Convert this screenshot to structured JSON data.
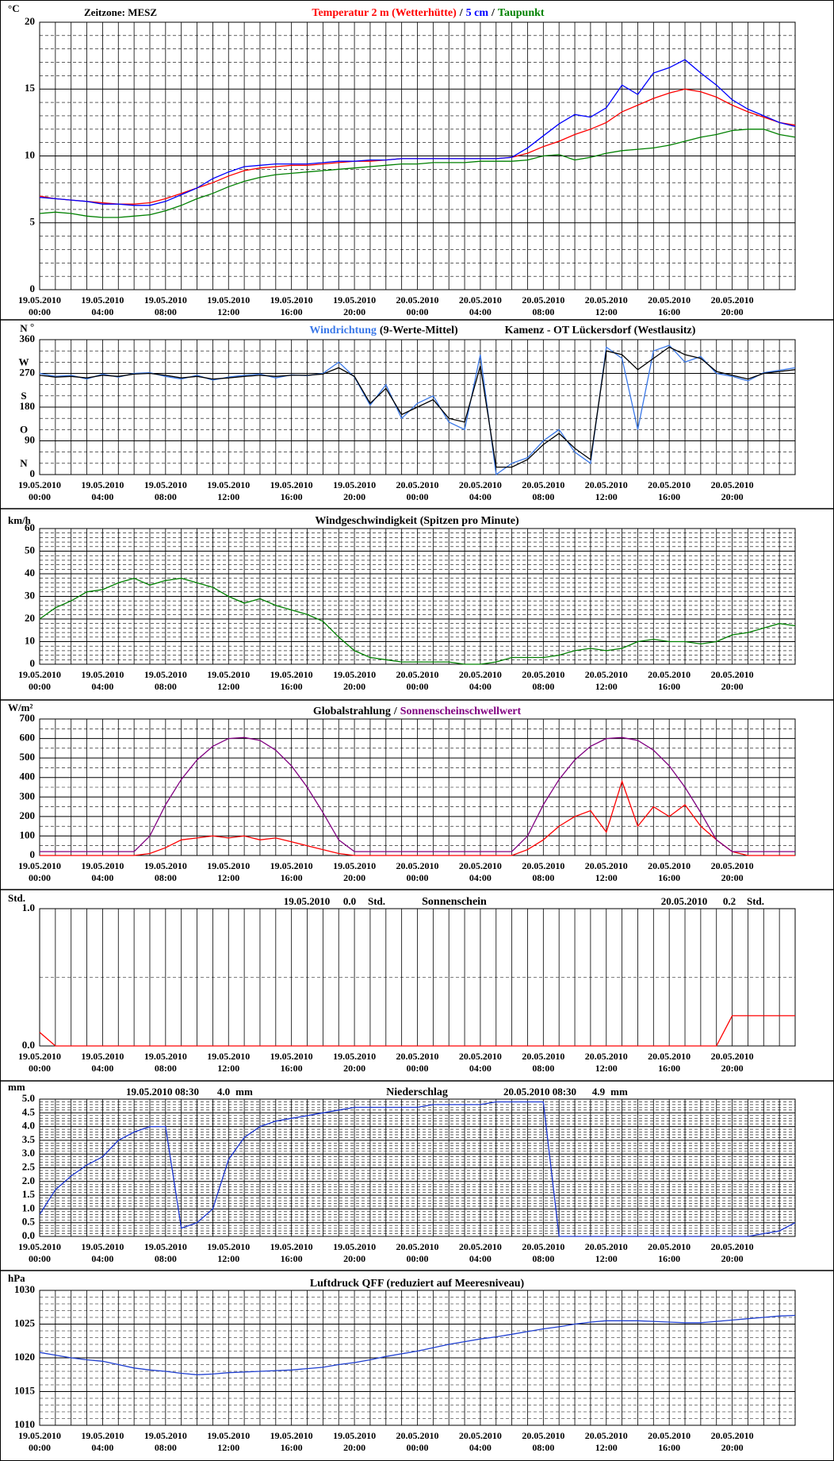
{
  "chart_data": [
    {
      "type": "line",
      "unit": "°C",
      "annotations": [
        "Zeitzone: MESZ"
      ],
      "legend_separator": "/",
      "categories": [
        "19.05.2010\n00:00",
        null,
        null,
        null,
        "19.05.2010\n04:00",
        null,
        null,
        null,
        "19.05.2010\n08:00",
        null,
        null,
        null,
        "19.05.2010\n12:00",
        null,
        null,
        null,
        "19.05.2010\n16:00",
        null,
        null,
        null,
        "19.05.2010\n20:00",
        null,
        null,
        null,
        "20.05.2010\n00:00",
        null,
        null,
        null,
        "20.05.2010\n04:00",
        null,
        null,
        null,
        "20.05.2010\n08:00",
        null,
        null,
        null,
        "20.05.2010\n12:00",
        null,
        null,
        null,
        "20.05.2010\n16:00",
        null,
        null,
        null,
        "20.05.2010\n20:00",
        null,
        null,
        null,
        null
      ],
      "ylim": [
        0,
        20
      ],
      "yticks": [
        0,
        5,
        10,
        15,
        20
      ],
      "minor_grid": 5,
      "x_grid": true,
      "series": [
        {
          "name": "Temperatur 2 m (Wetterhütte)",
          "color": "#ff0000",
          "values": [
            7.0,
            6.8,
            6.7,
            6.6,
            6.5,
            6.4,
            6.4,
            6.5,
            6.8,
            7.2,
            7.6,
            8.0,
            8.5,
            8.9,
            9.1,
            9.2,
            9.3,
            9.3,
            9.4,
            9.5,
            9.6,
            9.6,
            9.7,
            9.8,
            9.8,
            9.8,
            9.8,
            9.8,
            9.8,
            9.8,
            9.9,
            10.2,
            10.7,
            11.1,
            11.6,
            12.0,
            12.5,
            13.3,
            13.8,
            14.3,
            14.7,
            15.0,
            14.8,
            14.4,
            13.8,
            13.3,
            12.9,
            12.5,
            12.3
          ]
        },
        {
          "name": "5 cm",
          "color": "#0000ff",
          "values": [
            6.9,
            6.8,
            6.7,
            6.6,
            6.4,
            6.4,
            6.3,
            6.3,
            6.6,
            7.1,
            7.6,
            8.3,
            8.8,
            9.2,
            9.3,
            9.4,
            9.4,
            9.4,
            9.5,
            9.6,
            9.6,
            9.7,
            9.7,
            9.8,
            9.8,
            9.8,
            9.8,
            9.8,
            9.8,
            9.8,
            9.9,
            10.6,
            11.5,
            12.4,
            13.1,
            12.9,
            13.6,
            15.3,
            14.6,
            16.2,
            16.6,
            17.2,
            16.2,
            15.3,
            14.2,
            13.5,
            13.0,
            12.5,
            12.2
          ]
        },
        {
          "name": "Taupunkt",
          "color": "#008000",
          "values": [
            5.7,
            5.8,
            5.7,
            5.5,
            5.4,
            5.4,
            5.5,
            5.6,
            5.9,
            6.3,
            6.8,
            7.2,
            7.7,
            8.1,
            8.4,
            8.6,
            8.7,
            8.8,
            8.9,
            9.0,
            9.1,
            9.2,
            9.3,
            9.4,
            9.4,
            9.5,
            9.5,
            9.5,
            9.6,
            9.6,
            9.6,
            9.7,
            10.0,
            10.1,
            9.7,
            9.9,
            10.2,
            10.4,
            10.5,
            10.6,
            10.8,
            11.1,
            11.4,
            11.6,
            11.9,
            12.0,
            12.0,
            11.6,
            11.4
          ]
        }
      ]
    },
    {
      "type": "line",
      "unit": "°",
      "subtitle": "Kamenz - OT Lückersdorf (Westlausitz)",
      "categories": [
        "19.05.2010\n00:00",
        null,
        null,
        null,
        "19.05.2010\n04:00",
        null,
        null,
        null,
        "19.05.2010\n08:00",
        null,
        null,
        null,
        "19.05.2010\n12:00",
        null,
        null,
        null,
        "19.05.2010\n16:00",
        null,
        null,
        null,
        "19.05.2010\n20:00",
        null,
        null,
        null,
        "20.05.2010\n00:00",
        null,
        null,
        null,
        "20.05.2010\n04:00",
        null,
        null,
        null,
        "20.05.2010\n08:00",
        null,
        null,
        null,
        "20.05.2010\n12:00",
        null,
        null,
        null,
        "20.05.2010\n16:00",
        null,
        null,
        null,
        "20.05.2010\n20:00",
        null,
        null,
        null,
        null
      ],
      "ylim": [
        0,
        360
      ],
      "yticks": [
        0,
        90,
        180,
        270,
        360
      ],
      "minor_grid": 3,
      "x_grid": true,
      "y_compass": [
        {
          "value": 0,
          "label": "N"
        },
        {
          "value": 90,
          "label": "O"
        },
        {
          "value": 180,
          "label": "S"
        },
        {
          "value": 270,
          "label": "W"
        },
        {
          "value": 360,
          "label": "N"
        }
      ],
      "series": [
        {
          "name": "Windrichtung",
          "color": "#3a78e8",
          "values": [
            270,
            262,
            265,
            255,
            268,
            260,
            270,
            272,
            262,
            255,
            265,
            252,
            260,
            265,
            268,
            258,
            266,
            264,
            270,
            300,
            260,
            185,
            240,
            150,
            190,
            210,
            140,
            120,
            320,
            0,
            30,
            45,
            90,
            120,
            60,
            30,
            340,
            310,
            120,
            330,
            345,
            300,
            315,
            270,
            262,
            250,
            272,
            278,
            285
          ]
        },
        {
          "name": "(9-Werte-Mittel)",
          "color": "#000000",
          "values": [
            265,
            260,
            262,
            258,
            265,
            262,
            268,
            270,
            265,
            258,
            262,
            255,
            258,
            262,
            265,
            262,
            265,
            265,
            268,
            285,
            262,
            190,
            230,
            160,
            180,
            200,
            150,
            140,
            290,
            20,
            20,
            40,
            80,
            110,
            70,
            40,
            330,
            320,
            280,
            310,
            340,
            320,
            310,
            275,
            265,
            255,
            270,
            275,
            280
          ]
        }
      ]
    },
    {
      "type": "line",
      "unit": "km/h",
      "title": "Windgeschwindigkeit (Spitzen pro Minute)",
      "categories": [
        "19.05.2010\n00:00",
        null,
        null,
        null,
        "19.05.2010\n04:00",
        null,
        null,
        null,
        "19.05.2010\n08:00",
        null,
        null,
        null,
        "19.05.2010\n12:00",
        null,
        null,
        null,
        "19.05.2010\n16:00",
        null,
        null,
        null,
        "19.05.2010\n20:00",
        null,
        null,
        null,
        "20.05.2010\n00:00",
        null,
        null,
        null,
        "20.05.2010\n04:00",
        null,
        null,
        null,
        "20.05.2010\n08:00",
        null,
        null,
        null,
        "20.05.2010\n12:00",
        null,
        null,
        null,
        "20.05.2010\n16:00",
        null,
        null,
        null,
        "20.05.2010\n20:00",
        null,
        null,
        null,
        null
      ],
      "ylim": [
        0,
        60
      ],
      "yticks": [
        0,
        10,
        20,
        30,
        40,
        50,
        60
      ],
      "minor_grid": 5,
      "x_grid": true,
      "series": [
        {
          "color": "#008000",
          "values": [
            20,
            25,
            28,
            32,
            33,
            36,
            38,
            35,
            37,
            38,
            36,
            34,
            30,
            27,
            29,
            26,
            24,
            22,
            19,
            12,
            6,
            3,
            2,
            1,
            1,
            1,
            1,
            0,
            0,
            1,
            3,
            3,
            3,
            4,
            6,
            7,
            6,
            7,
            10,
            11,
            10,
            10,
            9,
            10,
            13,
            14,
            16,
            18,
            17
          ]
        }
      ]
    },
    {
      "type": "line",
      "unit": "W/m²",
      "legend_separator": "/",
      "categories": [
        "19.05.2010\n00:00",
        null,
        null,
        null,
        "19.05.2010\n04:00",
        null,
        null,
        null,
        "19.05.2010\n08:00",
        null,
        null,
        null,
        "19.05.2010\n12:00",
        null,
        null,
        null,
        "19.05.2010\n16:00",
        null,
        null,
        null,
        "19.05.2010\n20:00",
        null,
        null,
        null,
        "20.05.2010\n00:00",
        null,
        null,
        null,
        "20.05.2010\n04:00",
        null,
        null,
        null,
        "20.05.2010\n08:00",
        null,
        null,
        null,
        "20.05.2010\n12:00",
        null,
        null,
        null,
        "20.05.2010\n16:00",
        null,
        null,
        null,
        "20.05.2010\n20:00",
        null,
        null,
        null,
        null
      ],
      "ylim": [
        0,
        700
      ],
      "yticks": [
        0,
        100,
        200,
        300,
        400,
        500,
        600,
        700
      ],
      "minor_grid": 2,
      "x_grid": true,
      "series": [
        {
          "name": "Globalstrahlung",
          "color": "#ff0000",
          "legend_color": "#000000",
          "values": [
            0,
            0,
            0,
            0,
            0,
            0,
            0,
            10,
            40,
            80,
            90,
            100,
            90,
            100,
            80,
            90,
            70,
            50,
            30,
            10,
            0,
            0,
            0,
            0,
            0,
            0,
            0,
            0,
            0,
            0,
            0,
            30,
            80,
            150,
            200,
            230,
            120,
            380,
            150,
            250,
            200,
            260,
            150,
            80,
            20,
            0,
            0,
            0,
            0
          ]
        },
        {
          "name": "Sonnenscheinschwellwert",
          "color": "#800080",
          "values": [
            20,
            20,
            20,
            20,
            20,
            20,
            20,
            100,
            260,
            390,
            490,
            560,
            600,
            605,
            590,
            540,
            460,
            350,
            220,
            80,
            20,
            20,
            20,
            20,
            20,
            20,
            20,
            20,
            20,
            20,
            20,
            100,
            260,
            390,
            490,
            560,
            600,
            605,
            590,
            540,
            460,
            350,
            220,
            80,
            20,
            20,
            20,
            20,
            20
          ]
        }
      ]
    },
    {
      "type": "line",
      "unit": "Std.",
      "title": "Sonnenschein",
      "annotations": [
        "19.05.2010",
        "0.0",
        "Std.",
        "20.05.2010",
        "0.2",
        "Std."
      ],
      "categories": [
        "19.05.2010\n00:00",
        null,
        null,
        null,
        "19.05.2010\n04:00",
        null,
        null,
        null,
        "19.05.2010\n08:00",
        null,
        null,
        null,
        "19.05.2010\n12:00",
        null,
        null,
        null,
        "19.05.2010\n16:00",
        null,
        null,
        null,
        "19.05.2010\n20:00",
        null,
        null,
        null,
        "20.05.2010\n00:00",
        null,
        null,
        null,
        "20.05.2010\n04:00",
        null,
        null,
        null,
        "20.05.2010\n08:00",
        null,
        null,
        null,
        "20.05.2010\n12:00",
        null,
        null,
        null,
        "20.05.2010\n16:00",
        null,
        null,
        null,
        "20.05.2010\n20:00",
        null,
        null,
        null,
        null
      ],
      "ylim": [
        0,
        1
      ],
      "yticks": [
        {
          "value": 0,
          "label": "0.0"
        },
        {
          "value": 1,
          "label": "1.0"
        }
      ],
      "minor_grid": 2,
      "x_grid": true,
      "series": [
        {
          "color": "#ff0000",
          "values": [
            0.1,
            0,
            0,
            0,
            0,
            0,
            0,
            0,
            0,
            0,
            0,
            0,
            0,
            0,
            0,
            0,
            0,
            0,
            0,
            0,
            0,
            0,
            0,
            0,
            0,
            0,
            0,
            0,
            0,
            0,
            0,
            0,
            0,
            0,
            0,
            0,
            0,
            0,
            0,
            0,
            0,
            0,
            0,
            0,
            0.22,
            0.22,
            0.22,
            0.22,
            0.22
          ]
        }
      ]
    },
    {
      "type": "line",
      "unit": "mm",
      "title": "Niederschlag",
      "annotations": [
        "19.05.2010 08:30",
        "4.0",
        "mm",
        "20.05.2010 08:30",
        "4.9",
        "mm"
      ],
      "categories": [
        "19.05.2010\n00:00",
        null,
        null,
        null,
        "19.05.2010\n04:00",
        null,
        null,
        null,
        "19.05.2010\n08:00",
        null,
        null,
        null,
        "19.05.2010\n12:00",
        null,
        null,
        null,
        "19.05.2010\n16:00",
        null,
        null,
        null,
        "19.05.2010\n20:00",
        null,
        null,
        null,
        "20.05.2010\n00:00",
        null,
        null,
        null,
        "20.05.2010\n04:00",
        null,
        null,
        null,
        "20.05.2010\n08:00",
        null,
        null,
        null,
        "20.05.2010\n12:00",
        null,
        null,
        null,
        "20.05.2010\n16:00",
        null,
        null,
        null,
        "20.05.2010\n20:00",
        null,
        null,
        null,
        null
      ],
      "ylim": [
        0,
        5
      ],
      "yticks": [
        {
          "value": 0,
          "label": "0.0"
        },
        0.5,
        {
          "value": 1,
          "label": "1.0"
        },
        1.5,
        {
          "value": 2,
          "label": "2.0"
        },
        2.5,
        {
          "value": 3,
          "label": "3.0"
        },
        3.5,
        {
          "value": 4,
          "label": "4.0"
        },
        4.5,
        {
          "value": 5,
          "label": "5.0"
        }
      ],
      "minor_grid": 5,
      "x_grid": true,
      "series": [
        {
          "color": "#1a35d0",
          "values": [
            0.8,
            1.7,
            2.2,
            2.6,
            2.9,
            3.5,
            3.8,
            4.0,
            4.0,
            0.3,
            0.5,
            1.0,
            2.8,
            3.6,
            4.0,
            4.2,
            4.3,
            4.4,
            4.5,
            4.6,
            4.7,
            4.7,
            4.7,
            4.7,
            4.7,
            4.8,
            4.8,
            4.8,
            4.8,
            4.9,
            4.9,
            4.9,
            4.9,
            0,
            0,
            0,
            0,
            0,
            0,
            0,
            0,
            0,
            0,
            0,
            0,
            0,
            0.1,
            0.2,
            0.5
          ]
        }
      ]
    },
    {
      "type": "line",
      "unit": "hPa",
      "title": "Luftdruck QFF (reduziert auf Meeresniveau)",
      "categories": [
        "19.05.2010\n00:00",
        null,
        null,
        null,
        "19.05.2010\n04:00",
        null,
        null,
        null,
        "19.05.2010\n08:00",
        null,
        null,
        null,
        "19.05.2010\n12:00",
        null,
        null,
        null,
        "19.05.2010\n16:00",
        null,
        null,
        null,
        "19.05.2010\n20:00",
        null,
        null,
        null,
        "20.05.2010\n00:00",
        null,
        null,
        null,
        "20.05.2010\n04:00",
        null,
        null,
        null,
        "20.05.2010\n08:00",
        null,
        null,
        null,
        "20.05.2010\n12:00",
        null,
        null,
        null,
        "20.05.2010\n16:00",
        null,
        null,
        null,
        "20.05.2010\n20:00",
        null,
        null,
        null,
        null
      ],
      "ylim": [
        1010,
        1030
      ],
      "yticks": [
        1010,
        1015,
        1020,
        1025,
        1030
      ],
      "minor_grid": 5,
      "x_grid": true,
      "series": [
        {
          "color": "#1f3fd0",
          "values": [
            1020.8,
            1020.4,
            1020.0,
            1019.7,
            1019.5,
            1019.0,
            1018.5,
            1018.2,
            1018.0,
            1017.7,
            1017.5,
            1017.6,
            1017.8,
            1017.9,
            1018.0,
            1018.1,
            1018.2,
            1018.4,
            1018.6,
            1019.0,
            1019.3,
            1019.7,
            1020.2,
            1020.6,
            1021.0,
            1021.5,
            1022.0,
            1022.4,
            1022.8,
            1023.1,
            1023.5,
            1023.9,
            1024.3,
            1024.6,
            1025.0,
            1025.3,
            1025.5,
            1025.5,
            1025.5,
            1025.4,
            1025.3,
            1025.2,
            1025.2,
            1025.4,
            1025.6,
            1025.8,
            1026.0,
            1026.2,
            1026.3
          ]
        }
      ]
    }
  ]
}
